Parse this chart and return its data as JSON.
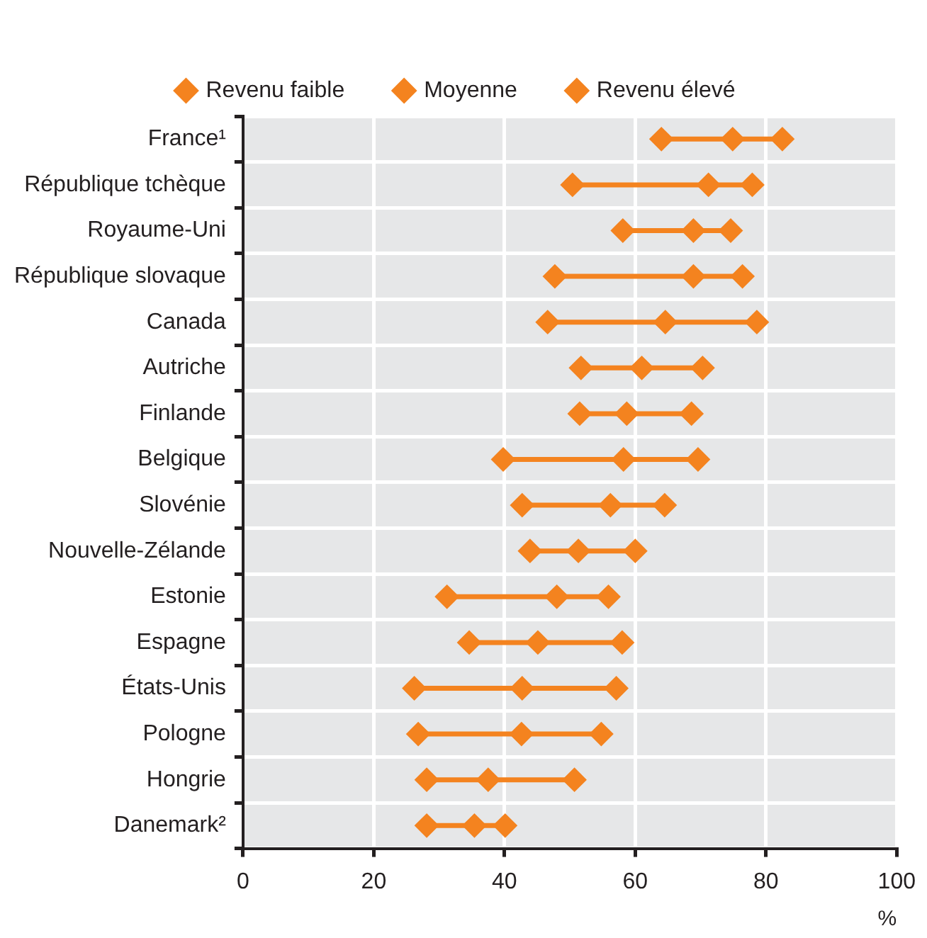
{
  "chart_data": {
    "type": "scatter",
    "orientation": "horizontal",
    "xlabel": "%",
    "categories": [
      "France¹",
      "République tchèque",
      "Royaume-Uni",
      "République slovaque",
      "Canada",
      "Autriche",
      "Finlande",
      "Belgique",
      "Slovénie",
      "Nouvelle-Zélande",
      "Estonie",
      "Espagne",
      "États-Unis",
      "Pologne",
      "Hongrie",
      "Danemark²"
    ],
    "series": [
      {
        "name": "Revenu faible",
        "color": "#f4831f",
        "values": [
          64,
          50.4,
          58.1,
          47.7,
          46.6,
          51.7,
          51.5,
          39.8,
          42.7,
          43.9,
          31.2,
          34.6,
          26.2,
          26.8,
          28.1,
          28.1
        ]
      },
      {
        "name": "Moyenne",
        "color": "#f4831f",
        "values": [
          74.9,
          71.2,
          68.9,
          68.9,
          64.6,
          61,
          58.7,
          58.2,
          56.2,
          51.3,
          48,
          45.1,
          42.7,
          42.6,
          37.5,
          35.4
        ]
      },
      {
        "name": "Revenu élevé",
        "color": "#f4831f",
        "values": [
          82.5,
          77.9,
          74.6,
          76.4,
          78.6,
          70.3,
          68.6,
          69.6,
          64.5,
          60,
          55.9,
          58,
          57.1,
          54.8,
          50.7,
          40.1
        ]
      }
    ],
    "xlim": [
      0,
      100
    ],
    "xticks": [
      0,
      20,
      40,
      60,
      80,
      100
    ],
    "grid": "x",
    "legend": "top",
    "marker": "diamond",
    "line_style": "solid"
  }
}
